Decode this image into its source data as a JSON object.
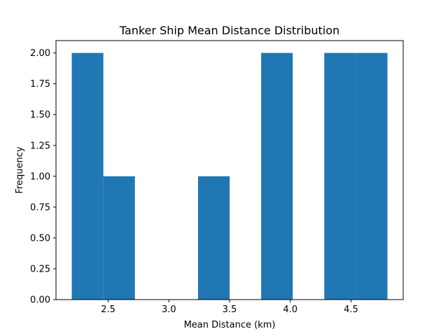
{
  "chart_data": {
    "type": "bar",
    "title": "Tanker Ship Mean Distance Distribution",
    "xlabel": "Mean Distance (km)",
    "ylabel": "Frequency",
    "xlim": [
      2.07,
      4.93
    ],
    "ylim": [
      0,
      2.1
    ],
    "grid": false,
    "bins": [
      {
        "x0": 2.2,
        "x1": 2.46,
        "count": 2
      },
      {
        "x0": 2.46,
        "x1": 2.72,
        "count": 1
      },
      {
        "x0": 2.72,
        "x1": 2.98,
        "count": 0
      },
      {
        "x0": 2.98,
        "x1": 3.24,
        "count": 0
      },
      {
        "x0": 3.24,
        "x1": 3.5,
        "count": 1
      },
      {
        "x0": 3.5,
        "x1": 3.76,
        "count": 0
      },
      {
        "x0": 3.76,
        "x1": 4.02,
        "count": 2
      },
      {
        "x0": 4.02,
        "x1": 4.28,
        "count": 0
      },
      {
        "x0": 4.28,
        "x1": 4.54,
        "count": 2
      },
      {
        "x0": 4.54,
        "x1": 4.8,
        "count": 2
      }
    ],
    "xticks": [
      "2.5",
      "3.0",
      "3.5",
      "4.0",
      "4.5"
    ],
    "yticks": [
      "0.00",
      "0.25",
      "0.50",
      "0.75",
      "1.00",
      "1.25",
      "1.50",
      "1.75",
      "2.00"
    ],
    "bar_color": "#1f77b4"
  }
}
